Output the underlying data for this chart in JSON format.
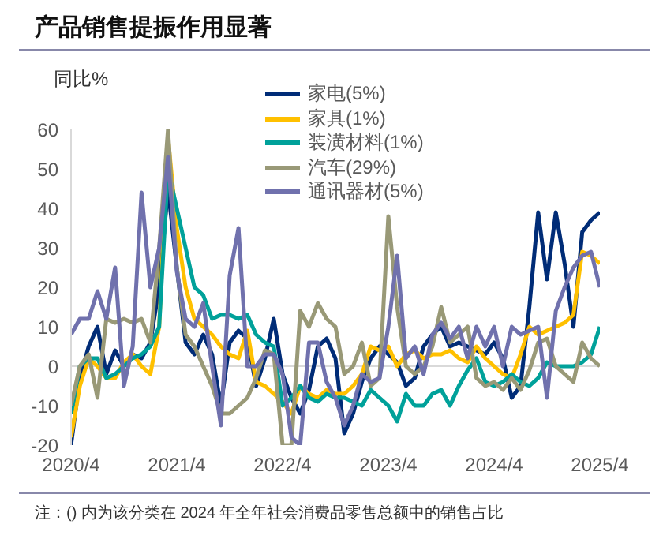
{
  "chart_data": {
    "type": "line",
    "title": "产品销售提振作用显著",
    "ylabel": "同比%",
    "annotations": [
      "注：() 内为该分类在 2024 年全年社会消费品零售总额中的销售占比"
    ],
    "x": [
      "2020-04",
      "2020-05",
      "2020-06",
      "2020-07",
      "2020-08",
      "2020-09",
      "2020-10",
      "2020-11",
      "2020-12",
      "2021-01",
      "2021-02",
      "2021-03",
      "2021-04",
      "2021-05",
      "2021-06",
      "2021-07",
      "2021-08",
      "2021-09",
      "2021-10",
      "2021-11",
      "2021-12",
      "2022-01",
      "2022-02",
      "2022-03",
      "2022-04",
      "2022-05",
      "2022-06",
      "2022-07",
      "2022-08",
      "2022-09",
      "2022-10",
      "2022-11",
      "2022-12",
      "2023-01",
      "2023-02",
      "2023-03",
      "2023-04",
      "2023-05",
      "2023-06",
      "2023-07",
      "2023-08",
      "2023-09",
      "2023-10",
      "2023-11",
      "2023-12",
      "2024-01",
      "2024-02",
      "2024-03",
      "2024-04",
      "2024-05",
      "2024-06",
      "2024-07",
      "2024-08",
      "2024-09",
      "2024-10",
      "2024-11",
      "2024-12",
      "2025-01",
      "2025-02",
      "2025-03",
      "2025-04"
    ],
    "series": [
      {
        "name": "家电(5%)",
        "color": "#002c77",
        "values": [
          -20,
          -3,
          5,
          10,
          -2,
          4,
          0,
          3,
          2,
          6,
          20,
          45,
          25,
          6,
          3,
          8,
          3,
          -10,
          6,
          9,
          7,
          -5,
          2,
          12,
          -2,
          -8,
          -12,
          -6,
          5,
          7,
          2,
          -17,
          -12,
          -4,
          2,
          5,
          3,
          1,
          -5,
          -3,
          5,
          8,
          10,
          5,
          6,
          5,
          4,
          3,
          6,
          2,
          -8,
          -5,
          15,
          39,
          22,
          39,
          26,
          10,
          34,
          37,
          39
        ]
      },
      {
        "name": "家具(1%)",
        "color": "#ffc000",
        "values": [
          -18,
          -5,
          2,
          0,
          -3,
          -3,
          1,
          3,
          0,
          -2,
          10,
          58,
          35,
          20,
          12,
          10,
          8,
          5,
          3,
          2,
          9,
          -4,
          -5,
          -7,
          -9,
          -12,
          -5,
          -7,
          -8,
          -6,
          -7,
          -7,
          -5,
          -2,
          5,
          4,
          5,
          0,
          3,
          4,
          2,
          3,
          3,
          4,
          2,
          1,
          5,
          2,
          0,
          -2,
          -3,
          3,
          10,
          8,
          9,
          10,
          11,
          13,
          29,
          28,
          26
        ]
      },
      {
        "name": "装潢材料(1%)",
        "color": "#00a19a",
        "values": [
          -12,
          0,
          2,
          2,
          -3,
          -2,
          0,
          2,
          3,
          5,
          10,
          50,
          40,
          30,
          20,
          18,
          12,
          13,
          13,
          12,
          13,
          8,
          6,
          5,
          -10,
          -8,
          -5,
          -8,
          -9,
          -7,
          -8,
          -8,
          -9,
          -10,
          -6,
          -8,
          -10,
          -14,
          -7,
          -10,
          -10,
          -7,
          -6,
          -10,
          -5,
          -1,
          2,
          -4,
          -5,
          -4,
          -2,
          -4,
          -5,
          -3,
          1,
          0,
          0,
          0,
          1,
          3,
          10
        ]
      },
      {
        "name": "汽车(29%)",
        "color": "#999977",
        "values": [
          -10,
          0,
          3,
          -8,
          12,
          11,
          12,
          11,
          12,
          6,
          30,
          60,
          25,
          8,
          5,
          0,
          -5,
          -12,
          -12,
          -10,
          -8,
          -3,
          4,
          3,
          -20,
          -20,
          14,
          10,
          16,
          12,
          10,
          -2,
          0,
          6,
          -5,
          -3,
          38,
          15,
          0,
          -2,
          0,
          5,
          15,
          6,
          8,
          10,
          -3,
          -5,
          -4,
          -6,
          -3,
          -6,
          -1,
          6,
          7,
          0,
          -2,
          -4,
          6,
          2,
          0
        ]
      },
      {
        "name": "通讯器材(5%)",
        "color": "#7071ad",
        "values": [
          8,
          12,
          12,
          19,
          12,
          25,
          -5,
          5,
          44,
          20,
          30,
          53,
          24,
          12,
          10,
          16,
          0,
          -15,
          23,
          35,
          0,
          0,
          3,
          3,
          -2,
          -18,
          -20,
          6,
          6,
          -4,
          -8,
          -15,
          -10,
          -2,
          -4,
          -3,
          10,
          28,
          2,
          5,
          -2,
          8,
          11,
          7,
          10,
          2,
          10,
          5,
          10,
          0,
          10,
          8,
          9,
          10,
          -8,
          14,
          20,
          25,
          28,
          29,
          20
        ]
      }
    ],
    "xlim": [
      "2020-04",
      "2025-04"
    ],
    "xticks": [
      {
        "value": "2020-04",
        "label": "2020/4"
      },
      {
        "value": "2021-04",
        "label": "2021/4"
      },
      {
        "value": "2022-04",
        "label": "2022/4"
      },
      {
        "value": "2023-04",
        "label": "2023/4"
      },
      {
        "value": "2024-04",
        "label": "2024/4"
      },
      {
        "value": "2025-04",
        "label": "2025/4"
      }
    ],
    "ylim": [
      -20,
      60
    ],
    "yticks": [
      -20,
      -10,
      0,
      10,
      20,
      30,
      40,
      50,
      60
    ],
    "ref_lines": [
      {
        "axis": "y",
        "value": 0,
        "color": "#d9d9d9"
      }
    ],
    "grid": false,
    "legend": "top right",
    "marker": "none",
    "line_style": "solid"
  }
}
